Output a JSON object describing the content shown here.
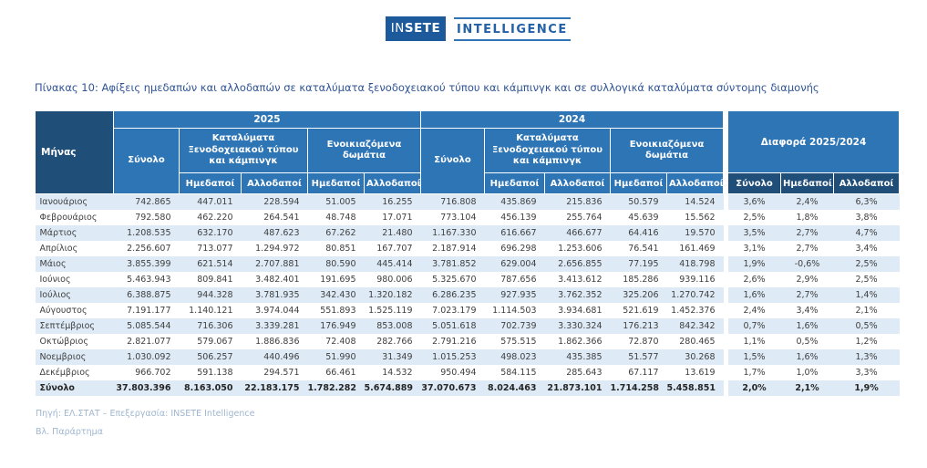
{
  "logo": {
    "brand_prefix": "IN",
    "brand_bold": "SETE",
    "subtitle": "INTELLIGENCE"
  },
  "title": "Πίνακας 10: Αφίξεις ημεδαπών και αλλοδαπών σε καταλύματα ξενοδοχειακού τύπου και κάμπινγκ και σε συλλογικά καταλύματα σύντομης διαμονής",
  "colors": {
    "header_blue": "#2e75b6",
    "header_dark_blue": "#1f4e78",
    "row_stripe": "#deebf7",
    "title_blue": "#2f5496",
    "footer_text": "#9fb6cf",
    "logo_box_blue": "#1d5a9c"
  },
  "table": {
    "month_header": "Μήνας",
    "years": [
      "2025",
      "2024"
    ],
    "labels": {
      "total": "Σύνολο",
      "hotel": "Καταλύματα Ξενοδοχειακού τύπου και κάμπινγκ",
      "rooms": "Ενοικιαζόμενα δωμάτια",
      "domestic": "Ημεδαποί",
      "foreign": "Αλλοδαποί",
      "diff": "Διαφορά  2025/2024"
    },
    "rows": [
      {
        "month": "Ιανουάριος",
        "y2025": [
          "742.865",
          "447.011",
          "228.594",
          "51.005",
          "16.255"
        ],
        "y2024": [
          "716.808",
          "435.869",
          "215.836",
          "50.579",
          "14.524"
        ],
        "diff": [
          "3,6%",
          "2,4%",
          "6,3%"
        ],
        "is_total": false
      },
      {
        "month": "Φεβρουάριος",
        "y2025": [
          "792.580",
          "462.220",
          "264.541",
          "48.748",
          "17.071"
        ],
        "y2024": [
          "773.104",
          "456.139",
          "255.764",
          "45.639",
          "15.562"
        ],
        "diff": [
          "2,5%",
          "1,8%",
          "3,8%"
        ],
        "is_total": false
      },
      {
        "month": "Μάρτιος",
        "y2025": [
          "1.208.535",
          "632.170",
          "487.623",
          "67.262",
          "21.480"
        ],
        "y2024": [
          "1.167.330",
          "616.667",
          "466.677",
          "64.416",
          "19.570"
        ],
        "diff": [
          "3,5%",
          "2,7%",
          "4,7%"
        ],
        "is_total": false
      },
      {
        "month": "Απρίλιος",
        "y2025": [
          "2.256.607",
          "713.077",
          "1.294.972",
          "80.851",
          "167.707"
        ],
        "y2024": [
          "2.187.914",
          "696.298",
          "1.253.606",
          "76.541",
          "161.469"
        ],
        "diff": [
          "3,1%",
          "2,7%",
          "3,4%"
        ],
        "is_total": false
      },
      {
        "month": "Μάιος",
        "y2025": [
          "3.855.399",
          "621.514",
          "2.707.881",
          "80.590",
          "445.414"
        ],
        "y2024": [
          "3.781.852",
          "629.004",
          "2.656.855",
          "77.195",
          "418.798"
        ],
        "diff": [
          "1,9%",
          "-0,6%",
          "2,5%"
        ],
        "is_total": false
      },
      {
        "month": "Ιούνιος",
        "y2025": [
          "5.463.943",
          "809.841",
          "3.482.401",
          "191.695",
          "980.006"
        ],
        "y2024": [
          "5.325.670",
          "787.656",
          "3.413.612",
          "185.286",
          "939.116"
        ],
        "diff": [
          "2,6%",
          "2,9%",
          "2,5%"
        ],
        "is_total": false
      },
      {
        "month": "Ιούλιος",
        "y2025": [
          "6.388.875",
          "944.328",
          "3.781.935",
          "342.430",
          "1.320.182"
        ],
        "y2024": [
          "6.286.235",
          "927.935",
          "3.762.352",
          "325.206",
          "1.270.742"
        ],
        "diff": [
          "1,6%",
          "2,7%",
          "1,4%"
        ],
        "is_total": false
      },
      {
        "month": "Αύγουστος",
        "y2025": [
          "7.191.177",
          "1.140.121",
          "3.974.044",
          "551.893",
          "1.525.119"
        ],
        "y2024": [
          "7.023.179",
          "1.114.503",
          "3.934.681",
          "521.619",
          "1.452.376"
        ],
        "diff": [
          "2,4%",
          "3,4%",
          "2,1%"
        ],
        "is_total": false
      },
      {
        "month": "Σεπτέμβριος",
        "y2025": [
          "5.085.544",
          "716.306",
          "3.339.281",
          "176.949",
          "853.008"
        ],
        "y2024": [
          "5.051.618",
          "702.739",
          "3.330.324",
          "176.213",
          "842.342"
        ],
        "diff": [
          "0,7%",
          "1,6%",
          "0,5%"
        ],
        "is_total": false
      },
      {
        "month": "Οκτώβριος",
        "y2025": [
          "2.821.077",
          "579.067",
          "1.886.836",
          "72.408",
          "282.766"
        ],
        "y2024": [
          "2.791.216",
          "575.515",
          "1.862.366",
          "72.870",
          "280.465"
        ],
        "diff": [
          "1,1%",
          "0,5%",
          "1,2%"
        ],
        "is_total": false
      },
      {
        "month": "Νοεμβριος",
        "y2025": [
          "1.030.092",
          "506.257",
          "440.496",
          "51.990",
          "31.349"
        ],
        "y2024": [
          "1.015.253",
          "498.023",
          "435.385",
          "51.577",
          "30.268"
        ],
        "diff": [
          "1,5%",
          "1,6%",
          "1,3%"
        ],
        "is_total": false
      },
      {
        "month": "Δεκέμβριος",
        "y2025": [
          "966.702",
          "591.138",
          "294.571",
          "66.461",
          "14.532"
        ],
        "y2024": [
          "950.494",
          "584.115",
          "285.643",
          "67.117",
          "13.619"
        ],
        "diff": [
          "1,7%",
          "1,0%",
          "3,3%"
        ],
        "is_total": false
      },
      {
        "month": "Σύνολο",
        "y2025": [
          "37.803.396",
          "8.163.050",
          "22.183.175",
          "1.782.282",
          "5.674.889"
        ],
        "y2024": [
          "37.070.673",
          "8.024.463",
          "21.873.101",
          "1.714.258",
          "5.458.851"
        ],
        "diff": [
          "2,0%",
          "2,1%",
          "1,9%"
        ],
        "is_total": true
      }
    ]
  },
  "footer": {
    "source": "Πηγή: ΕΛ.ΣΤΑΤ – Επεξεργασία: INSETE Intelligence",
    "note": "Βλ. Παράρτημα"
  }
}
